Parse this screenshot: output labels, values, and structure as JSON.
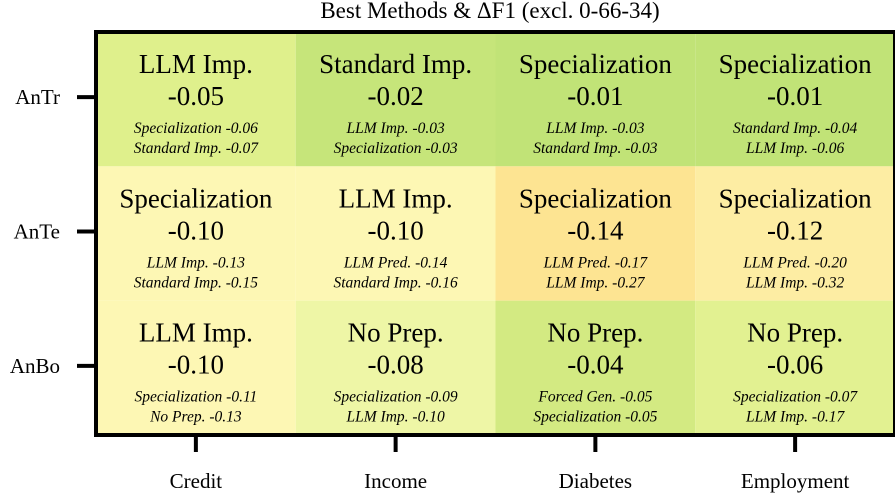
{
  "chart_data": {
    "type": "heatmap",
    "title": "Best Methods & ΔF1 (excl. 0-66-34)",
    "columns": [
      "Credit",
      "Income",
      "Diabetes",
      "Employment"
    ],
    "rows": [
      "AnTr",
      "AnTe",
      "AnBo"
    ],
    "cells": [
      [
        {
          "best": "LLM Imp.",
          "delta": "-0.05",
          "value": -0.05,
          "alt1": "Specialization -0.06",
          "alt2": "Standard Imp. -0.07",
          "color": "#dff08c"
        },
        {
          "best": "Standard Imp.",
          "delta": "-0.02",
          "value": -0.02,
          "alt1": "LLM Imp. -0.03",
          "alt2": "Specialization -0.03",
          "color": "#c6e57a"
        },
        {
          "best": "Specialization",
          "delta": "-0.01",
          "value": -0.01,
          "alt1": "LLM Imp. -0.03",
          "alt2": "Standard Imp. -0.03",
          "color": "#c1e377"
        },
        {
          "best": "Specialization",
          "delta": "-0.01",
          "value": -0.01,
          "alt1": "Standard Imp. -0.04",
          "alt2": "LLM Imp. -0.06",
          "color": "#c1e377"
        }
      ],
      [
        {
          "best": "Specialization",
          "delta": "-0.10",
          "value": -0.1,
          "alt1": "LLM Imp. -0.13",
          "alt2": "Standard Imp. -0.15",
          "color": "#fdf7b4"
        },
        {
          "best": "LLM Imp.",
          "delta": "-0.10",
          "value": -0.1,
          "alt1": "LLM Pred. -0.14",
          "alt2": "Standard Imp. -0.16",
          "color": "#fdf7b4"
        },
        {
          "best": "Specialization",
          "delta": "-0.14",
          "value": -0.14,
          "alt1": "LLM Pred. -0.17",
          "alt2": "LLM Imp. -0.27",
          "color": "#fde492"
        },
        {
          "best": "Specialization",
          "delta": "-0.12",
          "value": -0.12,
          "alt1": "LLM Pred. -0.20",
          "alt2": "LLM Imp. -0.32",
          "color": "#fdeda3"
        }
      ],
      [
        {
          "best": "LLM Imp.",
          "delta": "-0.10",
          "value": -0.1,
          "alt1": "Specialization -0.11",
          "alt2": "No Prep. -0.13",
          "color": "#fdf7b4"
        },
        {
          "best": "No Prep.",
          "delta": "-0.08",
          "value": -0.08,
          "alt1": "Specialization -0.09",
          "alt2": "LLM Imp. -0.10",
          "color": "#eef6a6"
        },
        {
          "best": "No Prep.",
          "delta": "-0.04",
          "value": -0.04,
          "alt1": "Forced Gen. -0.05",
          "alt2": "Specialization -0.05",
          "color": "#d3ea82"
        },
        {
          "best": "No Prep.",
          "delta": "-0.06",
          "value": -0.06,
          "alt1": "Specialization -0.07",
          "alt2": "LLM Imp. -0.17",
          "color": "#e2f191"
        }
      ]
    ],
    "grid": false,
    "legend": "none"
  }
}
